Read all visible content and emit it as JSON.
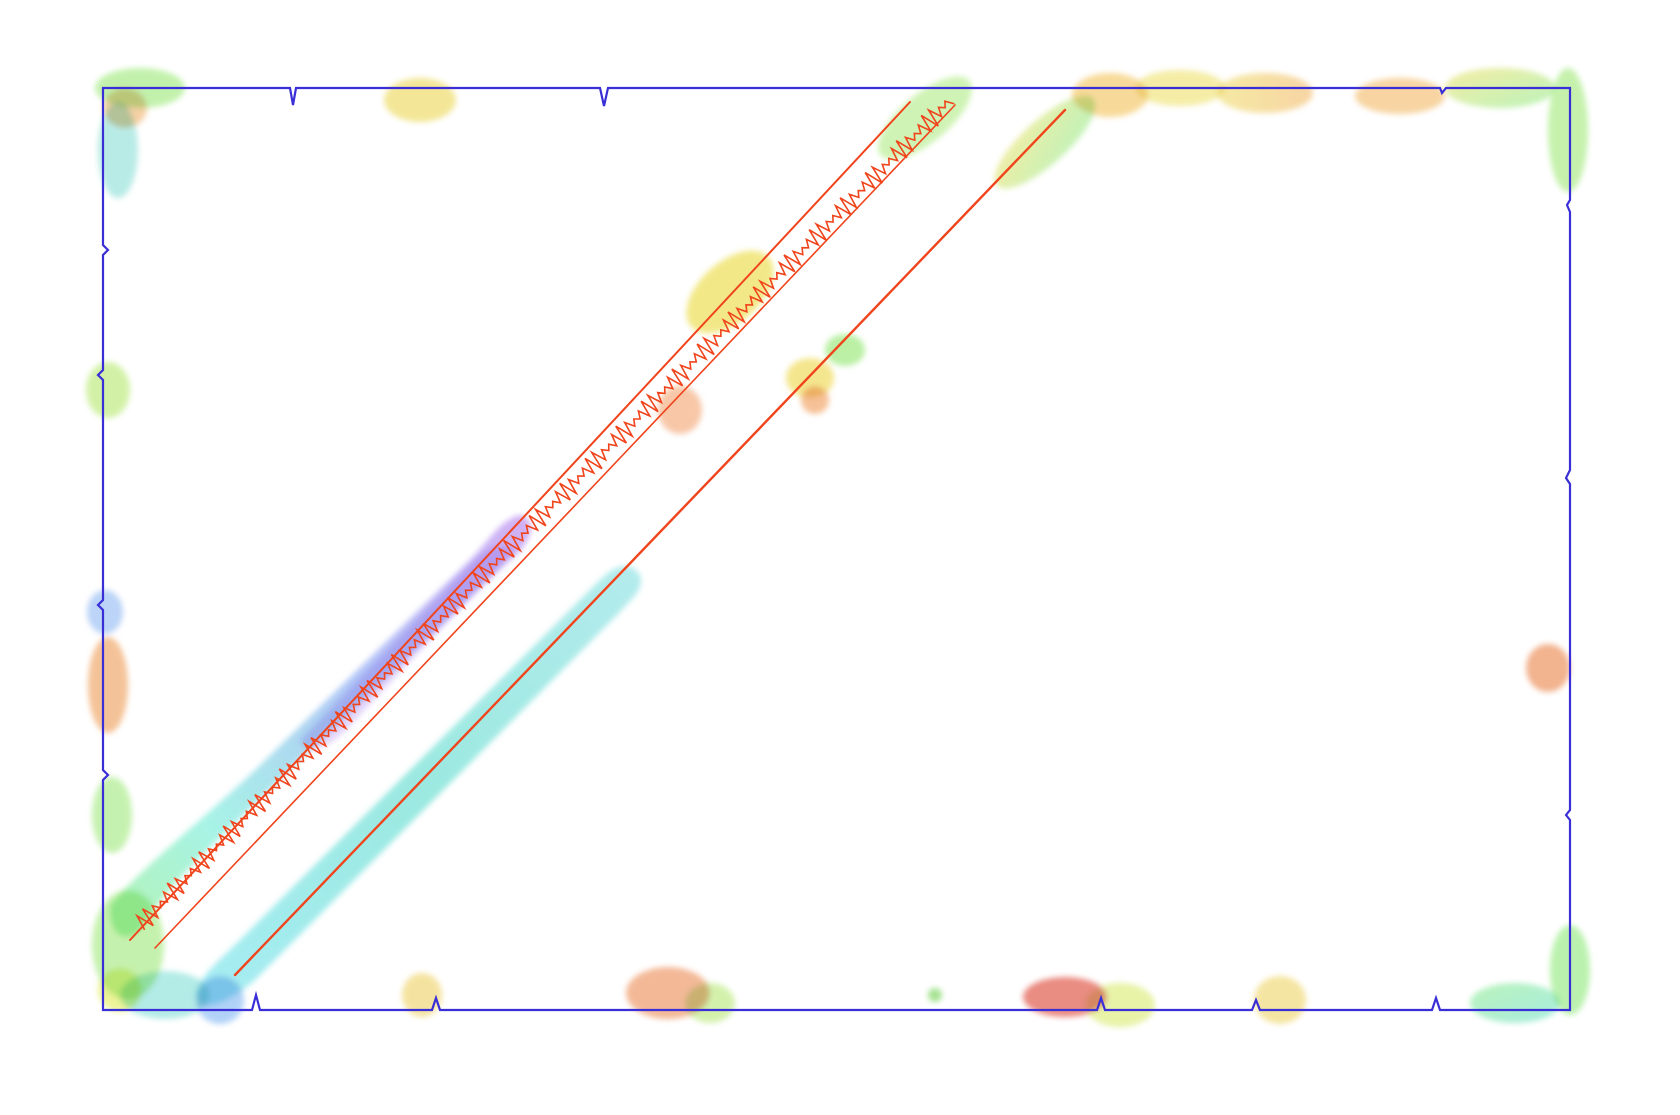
{
  "colors": {
    "background": "#ffffff",
    "frame": "#3a2fd6",
    "trace": "#f0441c",
    "spectrum": [
      "#b58cf0",
      "#8fb8f5",
      "#7fe3d8",
      "#9ff0a0",
      "#e6f27a",
      "#f7d27a",
      "#f29a6a",
      "#e8706a"
    ]
  }
}
